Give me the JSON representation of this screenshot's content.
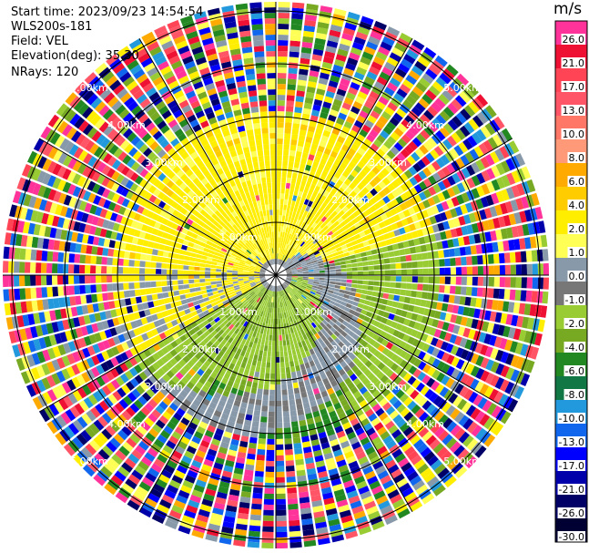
{
  "header": {
    "start_time": "Start time: 2023/09/23 14:54:54",
    "instrument": "WLS200s-181",
    "field": "Field: VEL",
    "elevation": "Elevation(deg): 35.30",
    "nrays": "NRays: 120"
  },
  "colorbar": {
    "unit": "m/s",
    "levels": [
      {
        "label": "26.0",
        "color": "#ff3399"
      },
      {
        "label": "21.0",
        "color": "#ee1133"
      },
      {
        "label": "17.0",
        "color": "#ff4455"
      },
      {
        "label": "13.0",
        "color": "#ff5566"
      },
      {
        "label": "10.0",
        "color": "#ff7766"
      },
      {
        "label": "8.0",
        "color": "#ff9977"
      },
      {
        "label": "6.0",
        "color": "#ffaa00"
      },
      {
        "label": "4.0",
        "color": "#ffcc00"
      },
      {
        "label": "2.0",
        "color": "#ffee00"
      },
      {
        "label": "1.0",
        "color": "#ffff55"
      },
      {
        "label": "0.0",
        "color": "#8899aa"
      },
      {
        "label": "-1.0",
        "color": "#777777"
      },
      {
        "label": "-2.0",
        "color": "#99cc33"
      },
      {
        "label": "-4.0",
        "color": "#77aa22"
      },
      {
        "label": "-6.0",
        "color": "#228822"
      },
      {
        "label": "-8.0",
        "color": "#117744"
      },
      {
        "label": "-10.0",
        "color": "#2299dd"
      },
      {
        "label": "-13.0",
        "color": "#1166ee"
      },
      {
        "label": "-17.0",
        "color": "#0000ff"
      },
      {
        "label": "-21.0",
        "color": "#0000aa"
      },
      {
        "label": "-26.0",
        "color": "#000066"
      },
      {
        "label": "-30.0",
        "color": "#000033"
      }
    ]
  },
  "range_labels": [
    "1.00km",
    "2.00km",
    "3.00km",
    "4.00km",
    "5.00km"
  ]
}
